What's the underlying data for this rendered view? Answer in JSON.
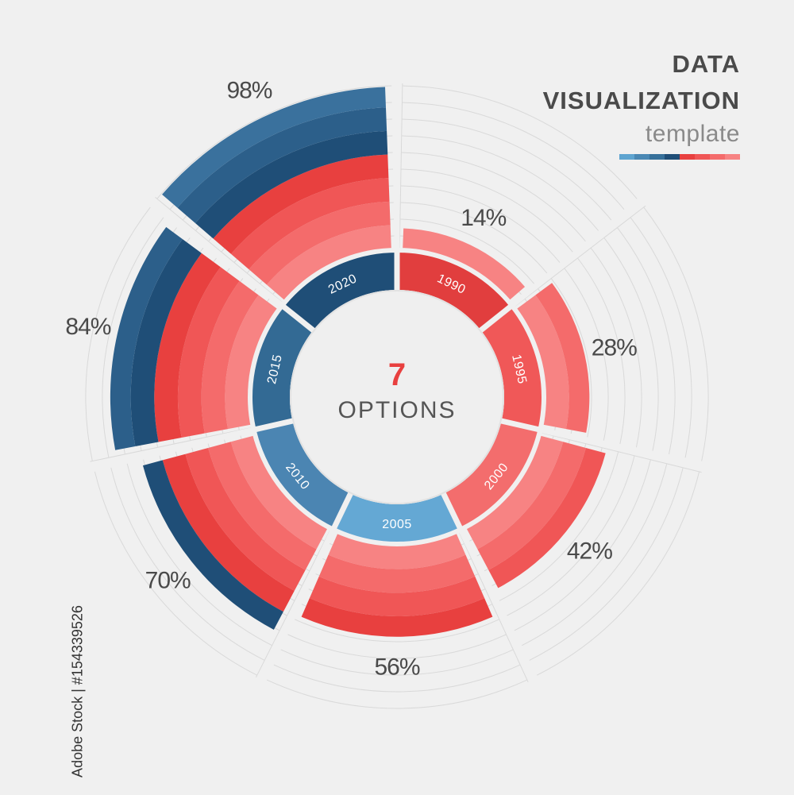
{
  "title": {
    "line1": "DATA",
    "line2": "VISUALIZATION",
    "subtitle": "template",
    "bar_colors": [
      "#5ea4d0",
      "#4a88b4",
      "#36709a",
      "#1f4e77",
      "#e8403f",
      "#f05656",
      "#f46b6b",
      "#f78383"
    ]
  },
  "center": {
    "count": "7",
    "text": "OPTIONS"
  },
  "stock_id": "Adobe Stock | #154339526",
  "colors": {
    "blue": [
      "#1f4e77",
      "#2c5f8a",
      "#3a719d",
      "#4b85b2",
      "#64a8d4"
    ],
    "red": [
      "#e8403f",
      "#f05656",
      "#f46b6b",
      "#f78383"
    ],
    "ring_red": [
      "#e13e3e",
      "#f05858",
      "#f36d6d"
    ],
    "ring_blue": [
      "#1f4e77",
      "#336a94",
      "#4b85b2",
      "#64a8d4"
    ],
    "grid": "#d9d9d9"
  },
  "chart_data": {
    "type": "pie",
    "categories": [
      "1990",
      "1995",
      "2000",
      "2005",
      "2010",
      "2015",
      "2020"
    ],
    "values": [
      14,
      28,
      42,
      56,
      70,
      84,
      98
    ],
    "labels": [
      "14%",
      "28%",
      "42%",
      "56%",
      "70%",
      "84%",
      "98%"
    ]
  }
}
